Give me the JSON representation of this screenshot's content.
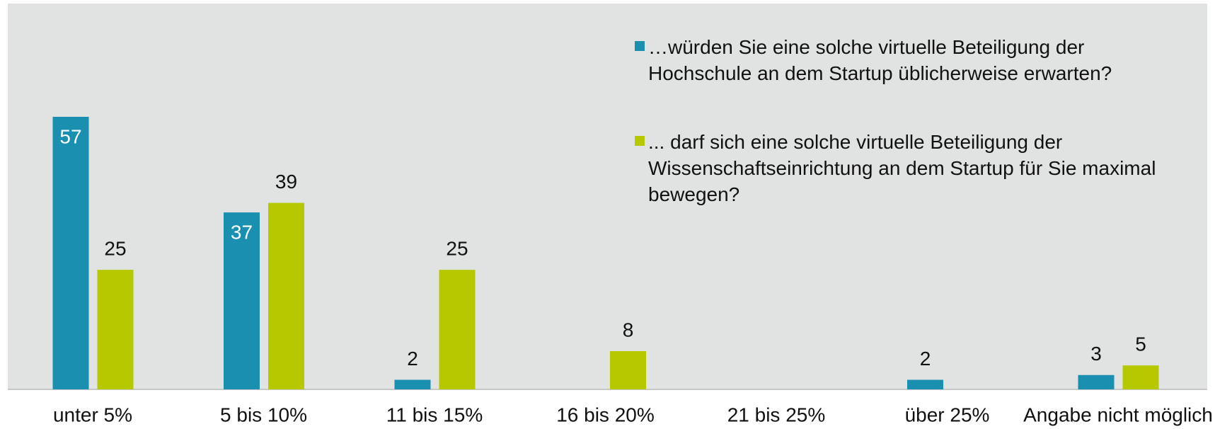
{
  "chart_data": {
    "type": "bar",
    "categories": [
      "unter 5%",
      "5 bis 10%",
      "11 bis 15%",
      "16 bis 20%",
      "21 bis 25%",
      "über 25%",
      "Angabe nicht möglich"
    ],
    "series": [
      {
        "name": "…würden Sie eine solche virtuelle Beteiligung der Hochschule an dem Startup üblicherweise erwarten?",
        "color": "#1a8fb0",
        "values": [
          57,
          37,
          2,
          null,
          null,
          2,
          3
        ]
      },
      {
        "name": "... darf sich eine solche virtuelle Beteiligung der Wissenschaftseinrichtung an dem Startup für Sie maximal bewegen?",
        "color": "#b5c800",
        "values": [
          25,
          39,
          25,
          8,
          null,
          null,
          5
        ]
      }
    ],
    "legend": "top-right"
  }
}
